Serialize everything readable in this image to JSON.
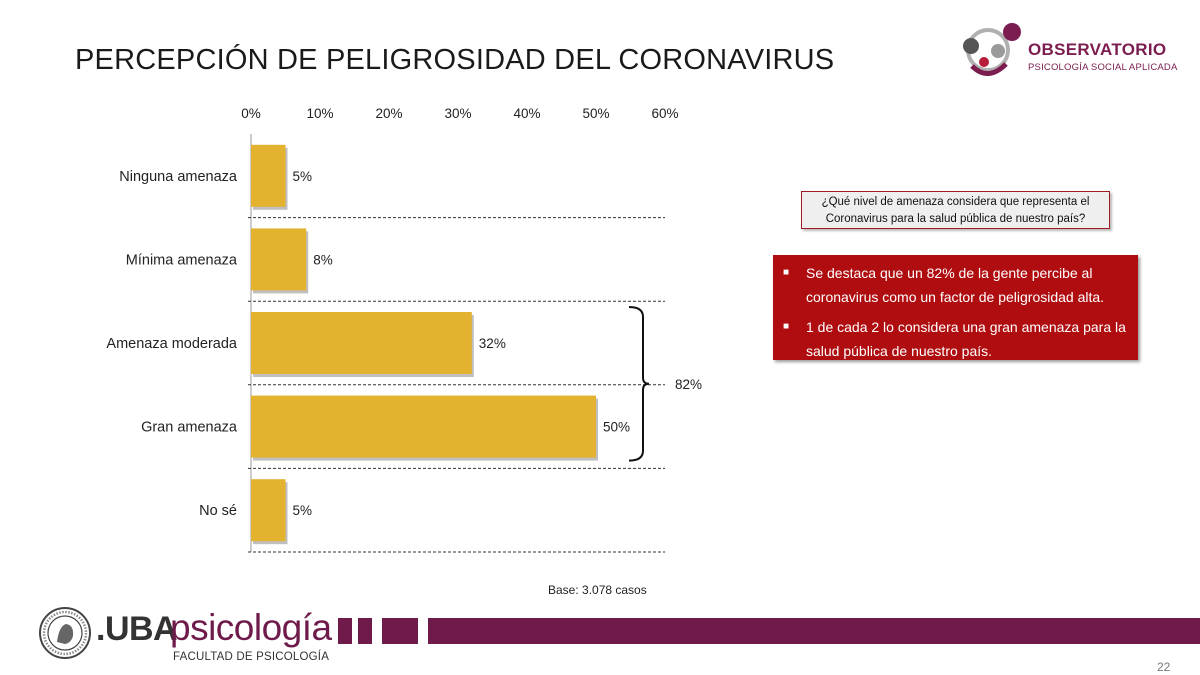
{
  "slide": {
    "title": "PERCEPCIÓN DE PELIGROSIDAD DEL CORONAVIRUS",
    "base": "Base: 3.078 casos",
    "question": "¿Qué nivel de amenaza considera que representa el Coronavirus para la salud pública de nuestro país?",
    "bullets": [
      "Se destaca que un 82% de la gente percibe al coronavirus como un factor de peligrosidad alta.",
      "1 de cada 2 lo considera una gran amenaza para la salud pública de nuestro país."
    ],
    "bracket_label": "82%",
    "page_number": "22"
  },
  "logos": {
    "observatorio": {
      "name": "OBSERVATORIO",
      "subtitle": "PSICOLOGÍA SOCIAL APLICADA"
    },
    "uba": {
      "prefix": ".UBA",
      "word": "psicología",
      "faculty": "FACULTAD DE PSICOLOGÍA"
    }
  },
  "colors": {
    "bar": "#e3b22f",
    "accent": "#b00d10",
    "brand": "#6e1a4b"
  },
  "chart_data": {
    "type": "bar",
    "orientation": "horizontal",
    "categories": [
      "Ninguna amenaza",
      "Mínima amenaza",
      "Amenaza moderada",
      "Gran amenaza",
      "No sé"
    ],
    "values": [
      5,
      8,
      32,
      50,
      5
    ],
    "value_labels": [
      "5%",
      "8%",
      "32%",
      "50%",
      "5%"
    ],
    "xlim": [
      0,
      60
    ],
    "xticks": [
      0,
      10,
      20,
      30,
      40,
      50,
      60
    ],
    "xtick_labels": [
      "0%",
      "10%",
      "20%",
      "30%",
      "40%",
      "50%",
      "60%"
    ],
    "x_axis_position": "top",
    "grid": "dashed separators between categories",
    "legend": "none"
  }
}
